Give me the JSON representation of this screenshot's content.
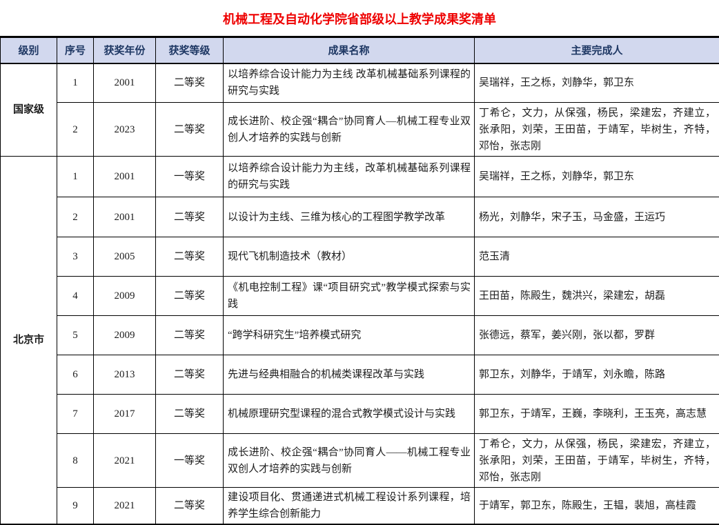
{
  "title": "机械工程及自动化学院省部级以上教学成果奖清单",
  "colors": {
    "title_text": "#ee0000",
    "header_bg": "#d2d8ee",
    "header_text": "#1f3864",
    "border": "#000000"
  },
  "table": {
    "headers": [
      "级别",
      "序号",
      "获奖年份",
      "获奖等级",
      "成果名称",
      "主要完成人"
    ],
    "groups": [
      {
        "level": "国家级",
        "rows": [
          {
            "seq": "1",
            "year": "2001",
            "grade": "二等奖",
            "name": "以培养综合设计能力为主线 改革机械基础系列课程的研究与实践",
            "people": "吴瑞祥，王之栎，刘静华，郭卫东"
          },
          {
            "seq": "2",
            "year": "2023",
            "grade": "二等奖",
            "name": "成长进阶、校企强“耦合”协同育人—机械工程专业双创人才培养的实践与创新",
            "people": "丁希仑，文力，从保强，杨民，梁建宏，齐建立，张承阳，刘荣，王田苗，于靖军，毕树生，齐特，邓怡，张志刚"
          }
        ]
      },
      {
        "level": "北京市",
        "rows": [
          {
            "seq": "1",
            "year": "2001",
            "grade": "一等奖",
            "name": "以培养综合设计能力为主线，改革机械基础系列课程的研究与实践",
            "people": "吴瑞祥，王之栎，刘静华，郭卫东"
          },
          {
            "seq": "2",
            "year": "2001",
            "grade": "二等奖",
            "name": "以设计为主线、三维为核心的工程图学教学改革",
            "people": "杨光，刘静华，宋子玉，马金盛，王运巧"
          },
          {
            "seq": "3",
            "year": "2005",
            "grade": "二等奖",
            "name": "现代飞机制造技术（教材）",
            "people": "范玉清"
          },
          {
            "seq": "4",
            "year": "2009",
            "grade": "二等奖",
            "name": "《机电控制工程》课“项目研究式”教学模式探索与实践",
            "people": "王田苗，陈殿生，魏洪兴，梁建宏，胡磊"
          },
          {
            "seq": "5",
            "year": "2009",
            "grade": "二等奖",
            "name": "“跨学科研究生”培养模式研究",
            "people": "张德远，蔡军，姜兴刚，张以都，罗群"
          },
          {
            "seq": "6",
            "year": "2013",
            "grade": "二等奖",
            "name": "先进与经典相融合的机械类课程改革与实践",
            "people": "郭卫东，刘静华，于靖军，刘永瞻，陈路"
          },
          {
            "seq": "7",
            "year": "2017",
            "grade": "二等奖",
            "name": "机械原理研究型课程的混合式教学模式设计与实践",
            "people": "郭卫东，于靖军，王巍，李晓利，王玉亮，高志慧"
          },
          {
            "seq": "8",
            "year": "2021",
            "grade": "一等奖",
            "name": "成长进阶、校企强“耦合”协同育人——机械工程专业双创人才培养的实践与创新",
            "people": "丁希仑，文力，从保强，杨民，梁建宏，齐建立，张承阳，刘荣，王田苗，于靖军，毕树生，齐特，邓怡，张志刚"
          },
          {
            "seq": "9",
            "year": "2021",
            "grade": "二等奖",
            "name": "建设项目化、贯通递进式机械工程设计系列课程，培养学生综合创新能力",
            "people": "于靖军，郭卫东，陈殿生，王韫，裴旭，高桂霞"
          }
        ]
      }
    ]
  }
}
